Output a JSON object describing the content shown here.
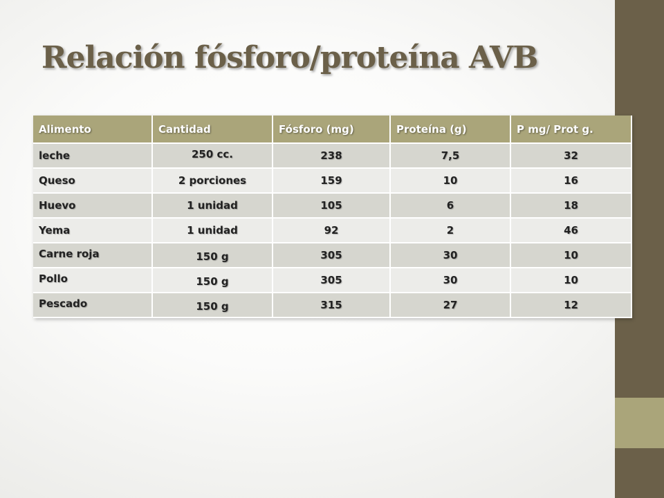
{
  "slide": {
    "title": "Relación fósforo/proteína AVB",
    "colors": {
      "accent_dark": "#6b6049",
      "accent_light": "#aaa57a",
      "row_dark": "#d6d6cf",
      "row_light": "#ecece9"
    }
  },
  "table": {
    "headers": [
      "Alimento",
      "Cantidad",
      "Fósforo (mg)",
      "Proteína (g)",
      "P mg/ Prot g."
    ],
    "rows": [
      [
        "leche",
        "250 cc.",
        "238",
        "7,5",
        "32"
      ],
      [
        "Queso",
        "2 porciones",
        "159",
        "10",
        "16"
      ],
      [
        "Huevo",
        "1 unidad",
        "105",
        "6",
        "18"
      ],
      [
        "Yema",
        "1 unidad",
        "92",
        "2",
        "46"
      ],
      [
        "Carne roja",
        "150 g",
        "305",
        "30",
        "10"
      ],
      [
        "Pollo",
        "150 g",
        "305",
        "30",
        "10"
      ],
      [
        "Pescado",
        "150 g",
        "315",
        "27",
        "12"
      ]
    ]
  }
}
